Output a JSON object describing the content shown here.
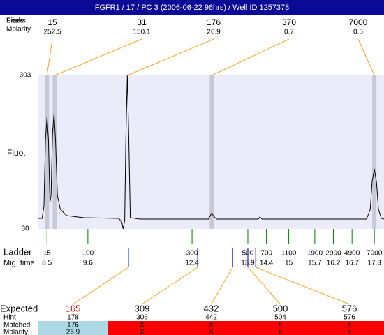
{
  "chart_data": {
    "type": "line",
    "title": "FGFR1 / 17 / PC 3 (2006-06-22 96hrs) / Well ID 1257378",
    "y_label": "Fluo.",
    "xlim": [
      8.27,
      17.56
    ],
    "ylim": [
      30,
      303
    ],
    "yticks": [
      30,
      303
    ],
    "series": [
      {
        "color": "#000000",
        "x": [
          8.27,
          8.37,
          8.42,
          8.46,
          8.5,
          8.54,
          8.58,
          8.61,
          8.65,
          8.69,
          8.73,
          8.78,
          8.86,
          9.03,
          9.49,
          10.43,
          10.51,
          10.55,
          10.59,
          10.62,
          10.66,
          10.7,
          10.74,
          11.0,
          12.84,
          12.89,
          12.93,
          12.98,
          13.06,
          14.18,
          14.22,
          14.28,
          17.09,
          17.19,
          17.24,
          17.3,
          17.36,
          17.41,
          17.49,
          17.56
        ],
        "values": [
          48.6,
          48.6,
          71,
          189,
          228.6,
          189,
          77,
          89.6,
          201,
          234.8,
          189,
          89.6,
          64.7,
          53.6,
          49.9,
          48.6,
          42.4,
          30,
          46,
          189,
          303,
          189,
          49.9,
          47.4,
          47.4,
          53.6,
          58.5,
          52.3,
          47.4,
          47.4,
          51.1,
          47.4,
          47.4,
          64.7,
          114.4,
          136.7,
          111.9,
          64.7,
          48.6,
          47.4
        ]
      }
    ],
    "peak_row_labels": [
      "Sizes",
      "Peaks",
      "Molarity"
    ],
    "peaks": {
      "size": [
        15,
        31,
        176,
        370,
        7000
      ],
      "molarity": [
        252.5,
        150.1,
        26.9,
        0.7,
        0.5
      ],
      "time": [
        8.5,
        8.71,
        10.66,
        12.93,
        17.3
      ],
      "marker": [
        true,
        true,
        false,
        true,
        true
      ]
    },
    "ladder": {
      "label": "Ladder",
      "time_label": "Mig. time",
      "color": "#008000",
      "size": [
        15,
        100,
        300,
        500,
        700,
        1100,
        1900,
        2900,
        4900,
        7000
      ],
      "time": [
        8.5,
        9.6,
        12.4,
        13.9,
        14.4,
        15,
        15.7,
        16.2,
        16.7,
        17.3
      ]
    },
    "expected": {
      "labels": [
        "Expected",
        "Hint",
        "Matched",
        "Molarity"
      ],
      "size": [
        165,
        309,
        432,
        500,
        576
      ],
      "time": [
        10.69,
        12.55,
        13.49,
        13.9,
        14.11
      ],
      "hint": [
        178,
        306,
        442,
        504,
        576
      ],
      "matched": [
        176,
        "X",
        "X",
        "X",
        "X"
      ],
      "molarity": [
        26.9,
        "X",
        "X",
        "X",
        "X"
      ],
      "is_matched": [
        true,
        false,
        false,
        false,
        false
      ]
    }
  }
}
